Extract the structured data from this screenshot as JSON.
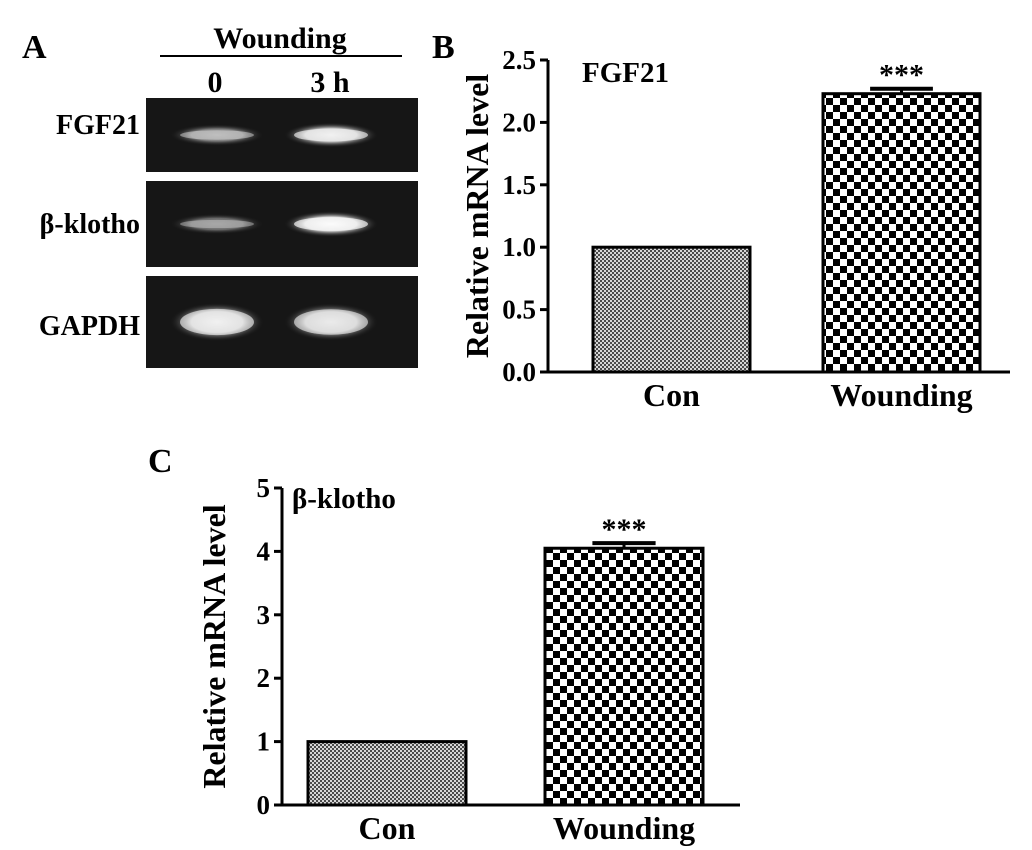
{
  "panels": {
    "a": {
      "letter": "A"
    },
    "b": {
      "letter": "B"
    },
    "c": {
      "letter": "C"
    }
  },
  "gel": {
    "header": "Wounding",
    "lanes": [
      "0",
      "3 h"
    ],
    "rows": [
      {
        "label": "FGF21",
        "band_intensity": [
          0.55,
          0.85
        ]
      },
      {
        "label": "β-klotho",
        "band_intensity": [
          0.45,
          0.95
        ]
      },
      {
        "label": "GAPDH",
        "band_intensity": [
          0.85,
          0.8
        ]
      }
    ]
  },
  "chart_data": [
    {
      "type": "bar",
      "title": "FGF21",
      "categories": [
        "Con",
        "Wounding"
      ],
      "values": [
        1.0,
        2.23
      ],
      "errors": [
        0,
        0.04
      ],
      "significance": [
        "",
        "***"
      ],
      "ylabel": "Relative mRNA level",
      "xlabel": "",
      "ylim": [
        0,
        2.5
      ],
      "yticks": [
        "0.0",
        "0.5",
        "1.0",
        "1.5",
        "2.0",
        "2.5"
      ],
      "patterns": [
        "fine-checker",
        "coarse-checker"
      ]
    },
    {
      "type": "bar",
      "title": "β-klotho",
      "categories": [
        "Con",
        "Wounding"
      ],
      "values": [
        1.0,
        4.05
      ],
      "errors": [
        0,
        0.08
      ],
      "significance": [
        "",
        "***"
      ],
      "ylabel": "Relative mRNA level",
      "xlabel": "",
      "ylim": [
        0,
        5
      ],
      "yticks": [
        "0",
        "1",
        "2",
        "3",
        "4",
        "5"
      ],
      "patterns": [
        "fine-checker",
        "coarse-checker"
      ]
    }
  ]
}
